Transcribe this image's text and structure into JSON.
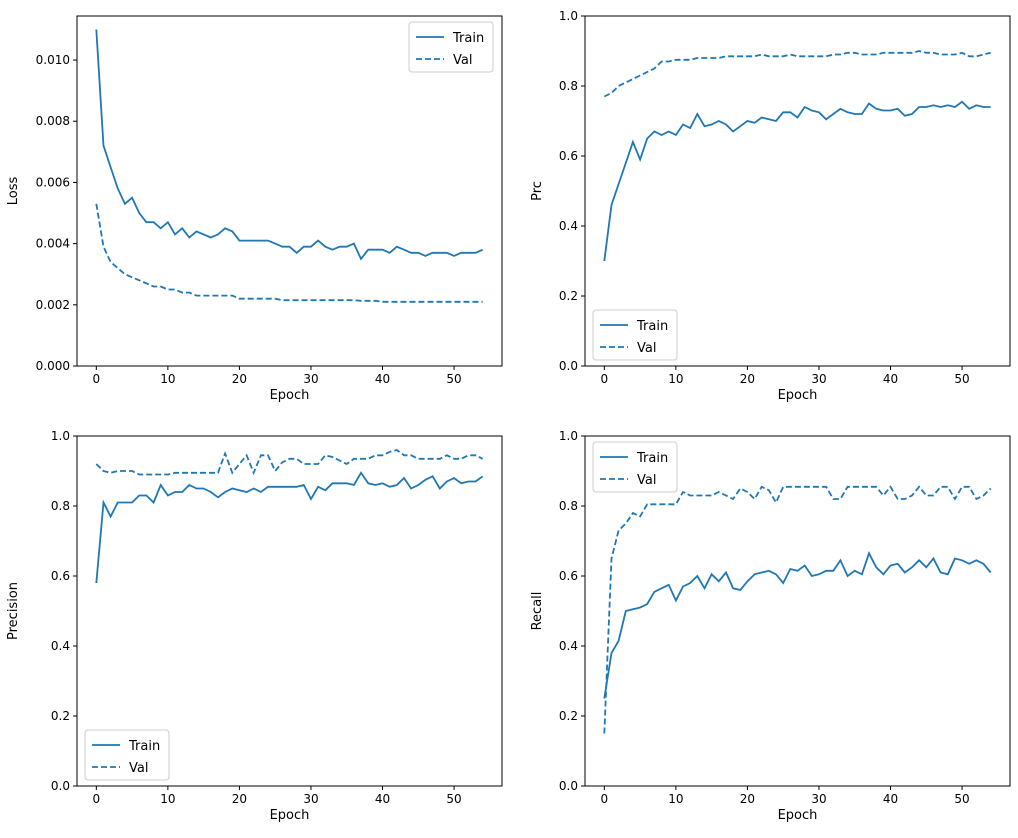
{
  "chart_data": [
    {
      "type": "line",
      "xlabel": "Epoch",
      "ylabel": "Loss",
      "xlim": [
        -2.7,
        56.7
      ],
      "ylim": [
        0,
        0.01144
      ],
      "xticks": [
        0,
        10,
        20,
        30,
        40,
        50
      ],
      "yticks": [
        "0.000",
        "0.002",
        "0.004",
        "0.006",
        "0.008",
        "0.010"
      ],
      "ytick_values": [
        0,
        0.002,
        0.004,
        0.006,
        0.008,
        0.01
      ],
      "legend": "upper right",
      "color": "#1f77b4",
      "series": [
        {
          "name": "Train",
          "style": "solid",
          "values": [
            0.011,
            0.0072,
            0.0065,
            0.0058,
            0.0053,
            0.0055,
            0.005,
            0.0047,
            0.0047,
            0.0045,
            0.0047,
            0.0043,
            0.0045,
            0.0042,
            0.0044,
            0.0043,
            0.0042,
            0.0043,
            0.0045,
            0.0044,
            0.0041,
            0.0041,
            0.0041,
            0.0041,
            0.0041,
            0.004,
            0.0039,
            0.0039,
            0.0037,
            0.0039,
            0.0039,
            0.0041,
            0.0039,
            0.0038,
            0.0039,
            0.0039,
            0.004,
            0.0035,
            0.0038,
            0.0038,
            0.0038,
            0.0037,
            0.0039,
            0.0038,
            0.0037,
            0.0037,
            0.0036,
            0.0037,
            0.0037,
            0.0037,
            0.0036,
            0.0037,
            0.0037,
            0.0037,
            0.0038
          ]
        },
        {
          "name": "Val",
          "style": "dashed",
          "values": [
            0.0053,
            0.0039,
            0.0034,
            0.0032,
            0.003,
            0.0029,
            0.0028,
            0.0027,
            0.0026,
            0.0026,
            0.0025,
            0.0025,
            0.0024,
            0.0024,
            0.0023,
            0.0023,
            0.0023,
            0.0023,
            0.0023,
            0.0023,
            0.0022,
            0.0022,
            0.0022,
            0.0022,
            0.0022,
            0.0022,
            0.00215,
            0.00215,
            0.00215,
            0.00215,
            0.00215,
            0.00215,
            0.00215,
            0.00215,
            0.00215,
            0.00215,
            0.00215,
            0.00213,
            0.00213,
            0.00213,
            0.0021,
            0.0021,
            0.0021,
            0.0021,
            0.0021,
            0.0021,
            0.0021,
            0.0021,
            0.0021,
            0.0021,
            0.0021,
            0.0021,
            0.0021,
            0.0021,
            0.0021
          ]
        }
      ]
    },
    {
      "type": "line",
      "xlabel": "Epoch",
      "ylabel": "Prc",
      "xlim": [
        -2.7,
        56.7
      ],
      "ylim": [
        0,
        1
      ],
      "xticks": [
        0,
        10,
        20,
        30,
        40,
        50
      ],
      "yticks": [
        "0.0",
        "0.2",
        "0.4",
        "0.6",
        "0.8",
        "1.0"
      ],
      "ytick_values": [
        0,
        0.2,
        0.4,
        0.6,
        0.8,
        1.0
      ],
      "legend": "lower left",
      "color": "#1f77b4",
      "series": [
        {
          "name": "Train",
          "style": "solid",
          "values": [
            0.3,
            0.46,
            0.52,
            0.58,
            0.64,
            0.59,
            0.65,
            0.67,
            0.66,
            0.67,
            0.66,
            0.69,
            0.68,
            0.72,
            0.685,
            0.69,
            0.7,
            0.69,
            0.67,
            0.685,
            0.7,
            0.695,
            0.71,
            0.705,
            0.7,
            0.725,
            0.725,
            0.71,
            0.74,
            0.73,
            0.725,
            0.705,
            0.72,
            0.735,
            0.725,
            0.72,
            0.72,
            0.75,
            0.735,
            0.73,
            0.73,
            0.735,
            0.715,
            0.72,
            0.74,
            0.74,
            0.745,
            0.74,
            0.745,
            0.74,
            0.755,
            0.735,
            0.745,
            0.74,
            0.74
          ]
        },
        {
          "name": "Val",
          "style": "dashed",
          "values": [
            0.77,
            0.78,
            0.8,
            0.81,
            0.82,
            0.83,
            0.84,
            0.85,
            0.87,
            0.87,
            0.875,
            0.875,
            0.875,
            0.88,
            0.88,
            0.88,
            0.88,
            0.885,
            0.885,
            0.885,
            0.885,
            0.885,
            0.89,
            0.885,
            0.885,
            0.885,
            0.89,
            0.885,
            0.885,
            0.885,
            0.885,
            0.885,
            0.89,
            0.89,
            0.895,
            0.895,
            0.89,
            0.89,
            0.89,
            0.895,
            0.895,
            0.895,
            0.895,
            0.895,
            0.9,
            0.895,
            0.895,
            0.89,
            0.89,
            0.89,
            0.895,
            0.885,
            0.885,
            0.89,
            0.895
          ]
        }
      ]
    },
    {
      "type": "line",
      "xlabel": "Epoch",
      "ylabel": "Precision",
      "xlim": [
        -2.7,
        56.7
      ],
      "ylim": [
        0,
        1
      ],
      "xticks": [
        0,
        10,
        20,
        30,
        40,
        50
      ],
      "yticks": [
        "0.0",
        "0.2",
        "0.4",
        "0.6",
        "0.8",
        "1.0"
      ],
      "ytick_values": [
        0,
        0.2,
        0.4,
        0.6,
        0.8,
        1.0
      ],
      "legend": "lower left",
      "color": "#1f77b4",
      "series": [
        {
          "name": "Train",
          "style": "solid",
          "values": [
            0.58,
            0.81,
            0.77,
            0.81,
            0.81,
            0.81,
            0.83,
            0.83,
            0.81,
            0.86,
            0.83,
            0.84,
            0.84,
            0.86,
            0.85,
            0.85,
            0.84,
            0.825,
            0.84,
            0.85,
            0.845,
            0.84,
            0.85,
            0.84,
            0.855,
            0.855,
            0.855,
            0.855,
            0.855,
            0.86,
            0.82,
            0.855,
            0.845,
            0.865,
            0.865,
            0.865,
            0.86,
            0.895,
            0.865,
            0.86,
            0.865,
            0.855,
            0.86,
            0.88,
            0.85,
            0.86,
            0.875,
            0.885,
            0.85,
            0.87,
            0.88,
            0.865,
            0.87,
            0.87,
            0.885
          ]
        },
        {
          "name": "Val",
          "style": "dashed",
          "values": [
            0.92,
            0.9,
            0.895,
            0.9,
            0.9,
            0.9,
            0.89,
            0.89,
            0.89,
            0.89,
            0.89,
            0.895,
            0.895,
            0.895,
            0.895,
            0.895,
            0.895,
            0.895,
            0.95,
            0.895,
            0.92,
            0.945,
            0.895,
            0.945,
            0.945,
            0.9,
            0.925,
            0.935,
            0.935,
            0.92,
            0.92,
            0.92,
            0.945,
            0.94,
            0.93,
            0.92,
            0.935,
            0.935,
            0.935,
            0.945,
            0.945,
            0.955,
            0.96,
            0.945,
            0.945,
            0.935,
            0.935,
            0.935,
            0.935,
            0.945,
            0.935,
            0.935,
            0.945,
            0.945,
            0.935
          ]
        }
      ]
    },
    {
      "type": "line",
      "xlabel": "Epoch",
      "ylabel": "Recall",
      "xlim": [
        -2.7,
        56.7
      ],
      "ylim": [
        0,
        1
      ],
      "xticks": [
        0,
        10,
        20,
        30,
        40,
        50
      ],
      "yticks": [
        "0.0",
        "0.2",
        "0.4",
        "0.6",
        "0.8",
        "1.0"
      ],
      "ytick_values": [
        0,
        0.2,
        0.4,
        0.6,
        0.8,
        1.0
      ],
      "legend": "upper left",
      "color": "#1f77b4",
      "series": [
        {
          "name": "Train",
          "style": "solid",
          "values": [
            0.25,
            0.38,
            0.415,
            0.5,
            0.505,
            0.51,
            0.52,
            0.555,
            0.565,
            0.575,
            0.53,
            0.57,
            0.58,
            0.6,
            0.565,
            0.605,
            0.585,
            0.61,
            0.565,
            0.56,
            0.585,
            0.605,
            0.61,
            0.615,
            0.605,
            0.58,
            0.62,
            0.615,
            0.63,
            0.6,
            0.605,
            0.615,
            0.615,
            0.645,
            0.6,
            0.615,
            0.605,
            0.665,
            0.625,
            0.605,
            0.63,
            0.635,
            0.61,
            0.625,
            0.645,
            0.625,
            0.65,
            0.61,
            0.605,
            0.65,
            0.645,
            0.635,
            0.645,
            0.635,
            0.61
          ]
        },
        {
          "name": "Val",
          "style": "dashed",
          "values": [
            0.15,
            0.65,
            0.73,
            0.75,
            0.78,
            0.77,
            0.805,
            0.805,
            0.805,
            0.805,
            0.805,
            0.84,
            0.83,
            0.83,
            0.83,
            0.83,
            0.84,
            0.83,
            0.82,
            0.85,
            0.84,
            0.82,
            0.855,
            0.845,
            0.81,
            0.855,
            0.855,
            0.855,
            0.855,
            0.855,
            0.855,
            0.855,
            0.82,
            0.82,
            0.855,
            0.855,
            0.855,
            0.855,
            0.855,
            0.83,
            0.855,
            0.82,
            0.82,
            0.83,
            0.855,
            0.83,
            0.83,
            0.855,
            0.855,
            0.82,
            0.855,
            0.855,
            0.82,
            0.83,
            0.85
          ]
        }
      ]
    }
  ]
}
